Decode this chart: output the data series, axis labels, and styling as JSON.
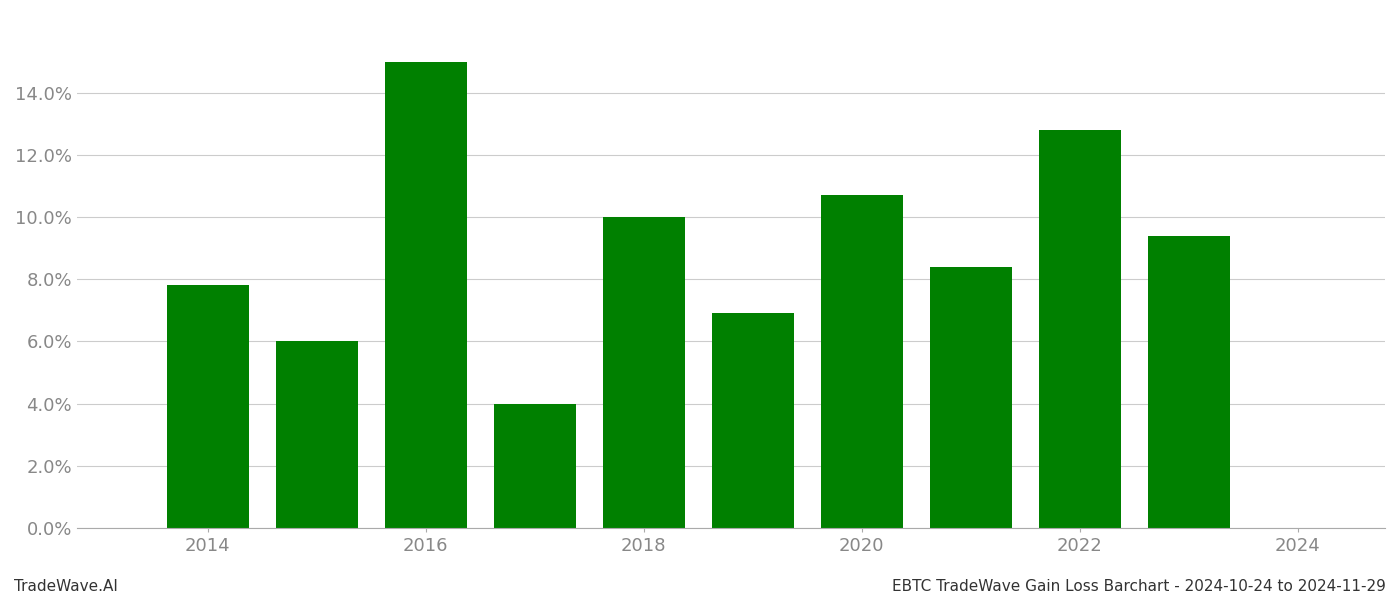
{
  "years": [
    2014,
    2015,
    2016,
    2017,
    2018,
    2019,
    2020,
    2021,
    2022,
    2023
  ],
  "values": [
    0.078,
    0.06,
    0.15,
    0.04,
    0.1,
    0.069,
    0.107,
    0.084,
    0.128,
    0.094
  ],
  "bar_color": "#008000",
  "background_color": "#ffffff",
  "grid_color": "#cccccc",
  "ylabel_color": "#888888",
  "xlabel_color": "#888888",
  "ylim": [
    0,
    0.165
  ],
  "yticks": [
    0.0,
    0.02,
    0.04,
    0.06,
    0.08,
    0.1,
    0.12,
    0.14
  ],
  "xticks": [
    2014,
    2016,
    2018,
    2020,
    2022,
    2024
  ],
  "footer_left": "TradeWave.AI",
  "footer_right": "EBTC TradeWave Gain Loss Barchart - 2024-10-24 to 2024-11-29",
  "bar_width": 0.75,
  "xlim_left": 2012.8,
  "xlim_right": 2024.8
}
